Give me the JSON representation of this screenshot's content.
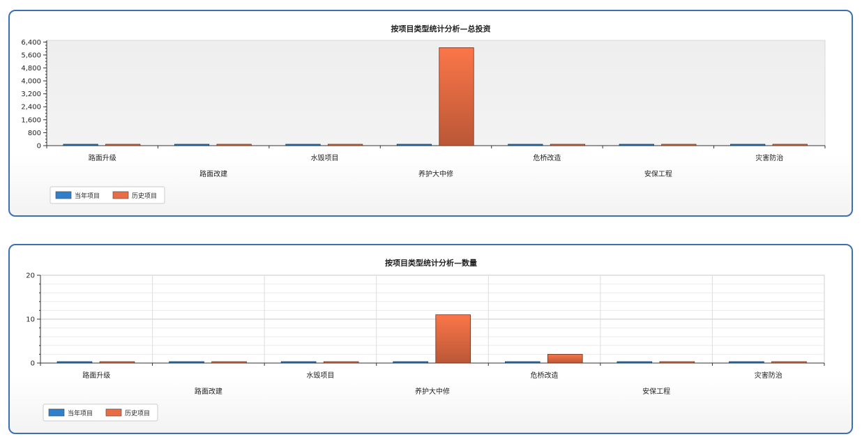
{
  "colors": {
    "series_current": "#2f7fcb",
    "series_history": "#e86d44",
    "panel_border": "#3d6fb5",
    "plot_bg_top": "#eeeeee"
  },
  "chart_data": [
    {
      "type": "bar",
      "title": "按项目类型统计分析—总投资",
      "categories": [
        "路面升级",
        "路面改建",
        "水毁项目",
        "养护大中修",
        "危桥改造",
        "安保工程",
        "灾害防治"
      ],
      "series": [
        {
          "name": "当年项目",
          "values": [
            0,
            0,
            0,
            0,
            0,
            0,
            0
          ]
        },
        {
          "name": "历史项目",
          "values": [
            0,
            0,
            0,
            6050,
            0,
            0,
            0
          ]
        }
      ],
      "yticks": [
        "0",
        "800",
        "1,600",
        "2,400",
        "3,200",
        "4,000",
        "4,800",
        "5,600",
        "6,400"
      ],
      "ylim": [
        0,
        6500
      ],
      "grid": false,
      "legend": "bottom-left"
    },
    {
      "type": "bar",
      "title": "按项目类型统计分析—数量",
      "categories": [
        "路面升级",
        "路面改建",
        "水毁项目",
        "养护大中修",
        "危桥改造",
        "安保工程",
        "灾害防治"
      ],
      "series": [
        {
          "name": "当年项目",
          "values": [
            0,
            0,
            0,
            0,
            0,
            0,
            0
          ]
        },
        {
          "name": "历史项目",
          "values": [
            0,
            0,
            0,
            11,
            2,
            0,
            0
          ]
        }
      ],
      "yticks": [
        "0",
        "10",
        "20"
      ],
      "ylim": [
        0,
        20
      ],
      "grid": true,
      "legend": "bottom-left"
    }
  ]
}
